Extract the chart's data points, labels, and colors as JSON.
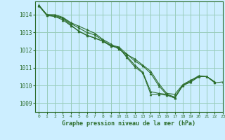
{
  "bg_color": "#cceeff",
  "grid_color": "#99ccbb",
  "line_color": "#2d6e2d",
  "xlabel": "Graphe pression niveau de la mer (hPa)",
  "ylim": [
    1008.5,
    1014.75
  ],
  "xlim": [
    -0.5,
    23
  ],
  "yticks": [
    1009,
    1010,
    1011,
    1012,
    1013,
    1014
  ],
  "xticks": [
    0,
    1,
    2,
    3,
    4,
    5,
    6,
    7,
    8,
    9,
    10,
    11,
    12,
    13,
    14,
    15,
    16,
    17,
    18,
    19,
    20,
    21,
    22,
    23
  ],
  "series": [
    {
      "x": [
        0,
        1,
        2,
        3,
        4,
        5,
        6,
        7,
        8,
        9,
        10,
        11,
        12,
        13,
        14,
        15,
        16,
        17,
        18,
        19,
        20,
        21,
        22,
        23
      ],
      "y": [
        1014.5,
        1014.0,
        1014.0,
        1013.85,
        1013.55,
        1013.35,
        1013.15,
        1012.95,
        1012.6,
        1012.35,
        1012.05,
        1011.75,
        1011.5,
        1011.15,
        1010.8,
        1010.1,
        1009.55,
        1009.5,
        1010.05,
        1010.3,
        1010.5,
        1010.5,
        1010.2,
        null
      ]
    },
    {
      "x": [
        0,
        1,
        2,
        3,
        4,
        5,
        6,
        7,
        8,
        9,
        10,
        11,
        12,
        13,
        14,
        15,
        16,
        17,
        18,
        19,
        20,
        21,
        22,
        23
      ],
      "y": [
        1014.5,
        1014.0,
        1013.95,
        1013.82,
        1013.5,
        1013.25,
        1013.0,
        1012.85,
        1012.55,
        1012.25,
        1012.1,
        1011.65,
        1011.15,
        1010.75,
        1009.65,
        1009.55,
        1009.5,
        1009.35,
        1010.0,
        1010.2,
        1010.5,
        1010.5,
        1010.2,
        null
      ]
    },
    {
      "x": [
        0,
        1,
        2,
        3,
        4,
        5,
        6,
        7,
        8,
        9,
        10,
        11,
        12,
        13,
        14,
        15,
        16,
        17,
        18,
        19,
        20,
        21,
        22,
        23
      ],
      "y": [
        1014.5,
        1013.95,
        1013.9,
        1013.78,
        1013.42,
        1013.05,
        1012.85,
        1012.68,
        1012.5,
        1012.22,
        1012.15,
        1011.58,
        1011.05,
        1010.7,
        1009.5,
        1009.5,
        1009.45,
        1009.3,
        1010.0,
        1010.2,
        1010.5,
        1010.5,
        1010.2,
        null
      ]
    },
    {
      "x": [
        0,
        1,
        2,
        3,
        4,
        5,
        6,
        7,
        8,
        9,
        10,
        11,
        12,
        13,
        14,
        15,
        16,
        17,
        18,
        19,
        20,
        21,
        22,
        23
      ],
      "y": [
        1014.55,
        1014.0,
        1013.9,
        1013.7,
        1013.38,
        1013.08,
        1012.82,
        1012.68,
        1012.5,
        1012.28,
        1012.18,
        1011.78,
        1011.38,
        1011.1,
        1010.68,
        1009.98,
        1009.48,
        1009.28,
        1010.0,
        1010.28,
        1010.55,
        1010.5,
        1010.15,
        1010.2
      ]
    }
  ]
}
